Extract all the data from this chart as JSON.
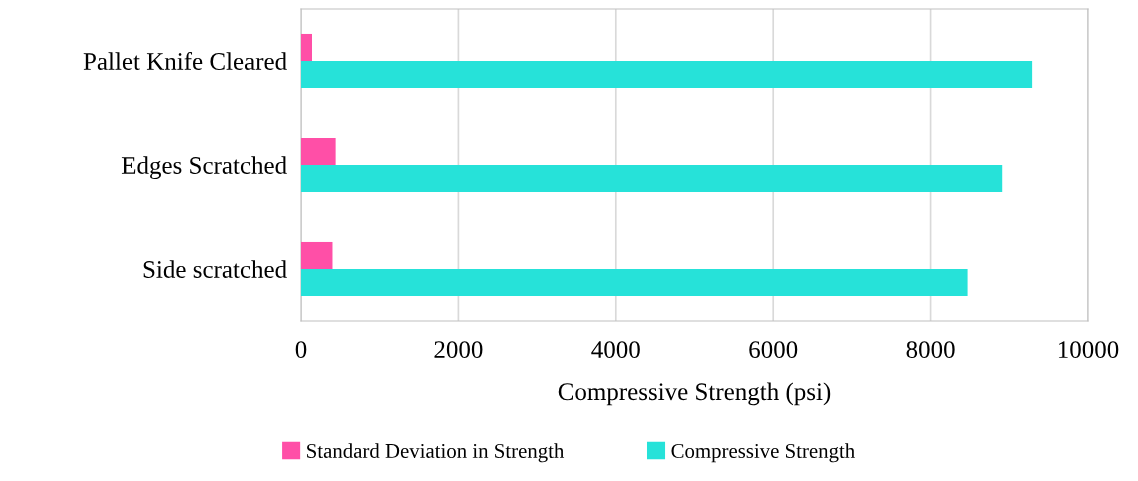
{
  "chart_data": {
    "type": "bar",
    "orientation": "horizontal",
    "xlabel": "Compressive Strength (psi)",
    "categories": [
      "Pallet Knife Cleared",
      "Edges Scratched",
      "Side scratched"
    ],
    "series": [
      {
        "name": "Standard Deviation in Strength",
        "color": "#ff4fa7",
        "values": [
          140,
          440,
          400
        ]
      },
      {
        "name": "Compressive Strength",
        "color": "#26e2d9",
        "values": [
          9290,
          8910,
          8470
        ]
      }
    ],
    "xlim": [
      0,
      10000
    ],
    "xticks": [
      0,
      2000,
      4000,
      6000,
      8000,
      10000
    ],
    "grid": "x",
    "legend": "bottom"
  }
}
